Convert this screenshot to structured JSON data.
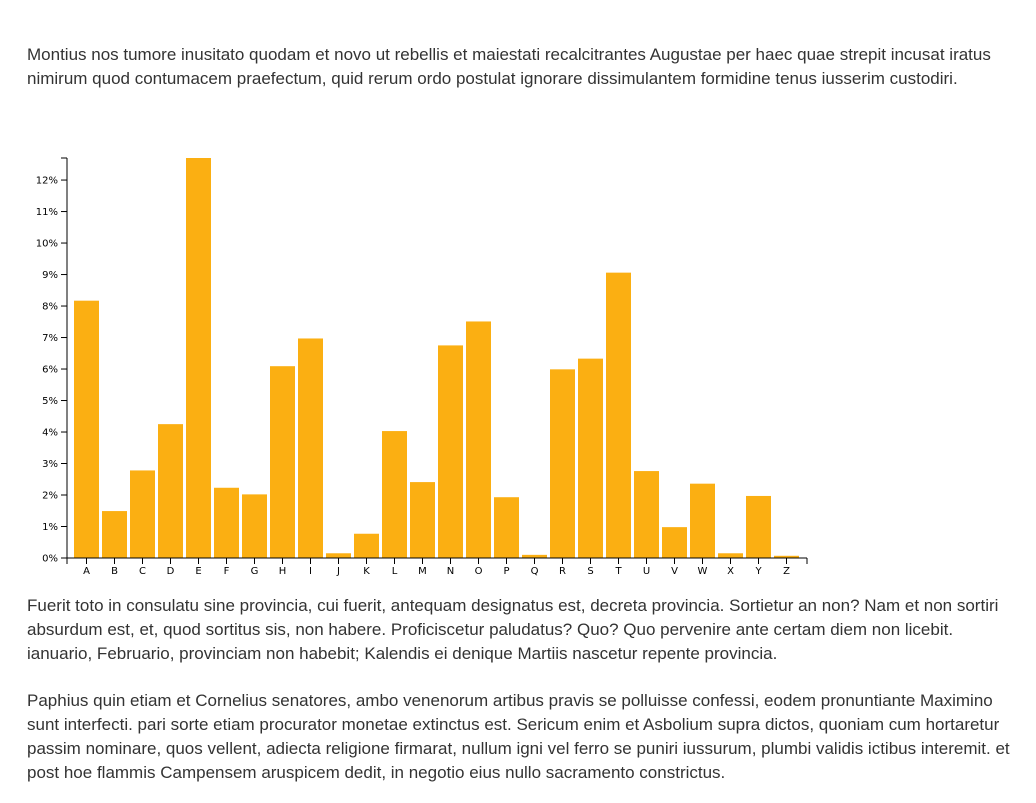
{
  "paragraphs": [
    "Montius nos tumore inusitato quodam et novo ut rebellis et maiestati recalcitrantes Augustae per haec quae strepit incusat iratus nimirum quod contumacem praefectum, quid rerum ordo postulat ignorare dissimulantem formidine tenus iusserim custodiri.",
    "Fuerit toto in consulatu sine provincia, cui fuerit, antequam designatus est, decreta provincia. Sortietur an non? Nam et non sortiri absurdum est, et, quod sortitus sis, non habere. Proficiscetur paludatus? Quo? Quo pervenire ante certam diem non licebit. ianuario, Februario, provinciam non habebit; Kalendis ei denique Martiis nascetur repente provincia.",
    "Paphius quin etiam et Cornelius senatores, ambo venenorum artibus pravis se polluisse confessi, eodem pronuntiante Maximino sunt interfecti. pari sorte etiam procurator monetae extinctus est. Sericum enim et Asbolium supra dictos, quoniam cum hortaretur passim nominare, quos vellent, adiecta religione firmarat, nullum igni vel ferro se puniri iussurum, plumbi validis ictibus interemit. et post hoe flammis Campensem aruspicem dedit, in negotio eius nullo sacramento constrictus."
  ],
  "chart_data": {
    "type": "bar",
    "title": "",
    "xlabel": "",
    "ylabel": "",
    "bar_color": "#FBAF12",
    "ylim": [
      0,
      12.7
    ],
    "y_ticks": [
      0,
      1,
      2,
      3,
      4,
      5,
      6,
      7,
      8,
      9,
      10,
      11,
      12
    ],
    "y_tick_labels": [
      "0%",
      "1%",
      "2%",
      "3%",
      "4%",
      "5%",
      "6%",
      "7%",
      "8%",
      "9%",
      "10%",
      "11%",
      "12%"
    ],
    "categories": [
      "A",
      "B",
      "C",
      "D",
      "E",
      "F",
      "G",
      "H",
      "I",
      "J",
      "K",
      "L",
      "M",
      "N",
      "O",
      "P",
      "Q",
      "R",
      "S",
      "T",
      "U",
      "V",
      "W",
      "X",
      "Y",
      "Z"
    ],
    "values": [
      8.17,
      1.49,
      2.78,
      4.25,
      12.7,
      2.23,
      2.02,
      6.09,
      6.97,
      0.15,
      0.77,
      4.03,
      2.41,
      6.75,
      7.51,
      1.93,
      0.1,
      5.99,
      6.33,
      9.06,
      2.76,
      0.98,
      2.36,
      0.15,
      1.97,
      0.07
    ],
    "grid": false
  }
}
